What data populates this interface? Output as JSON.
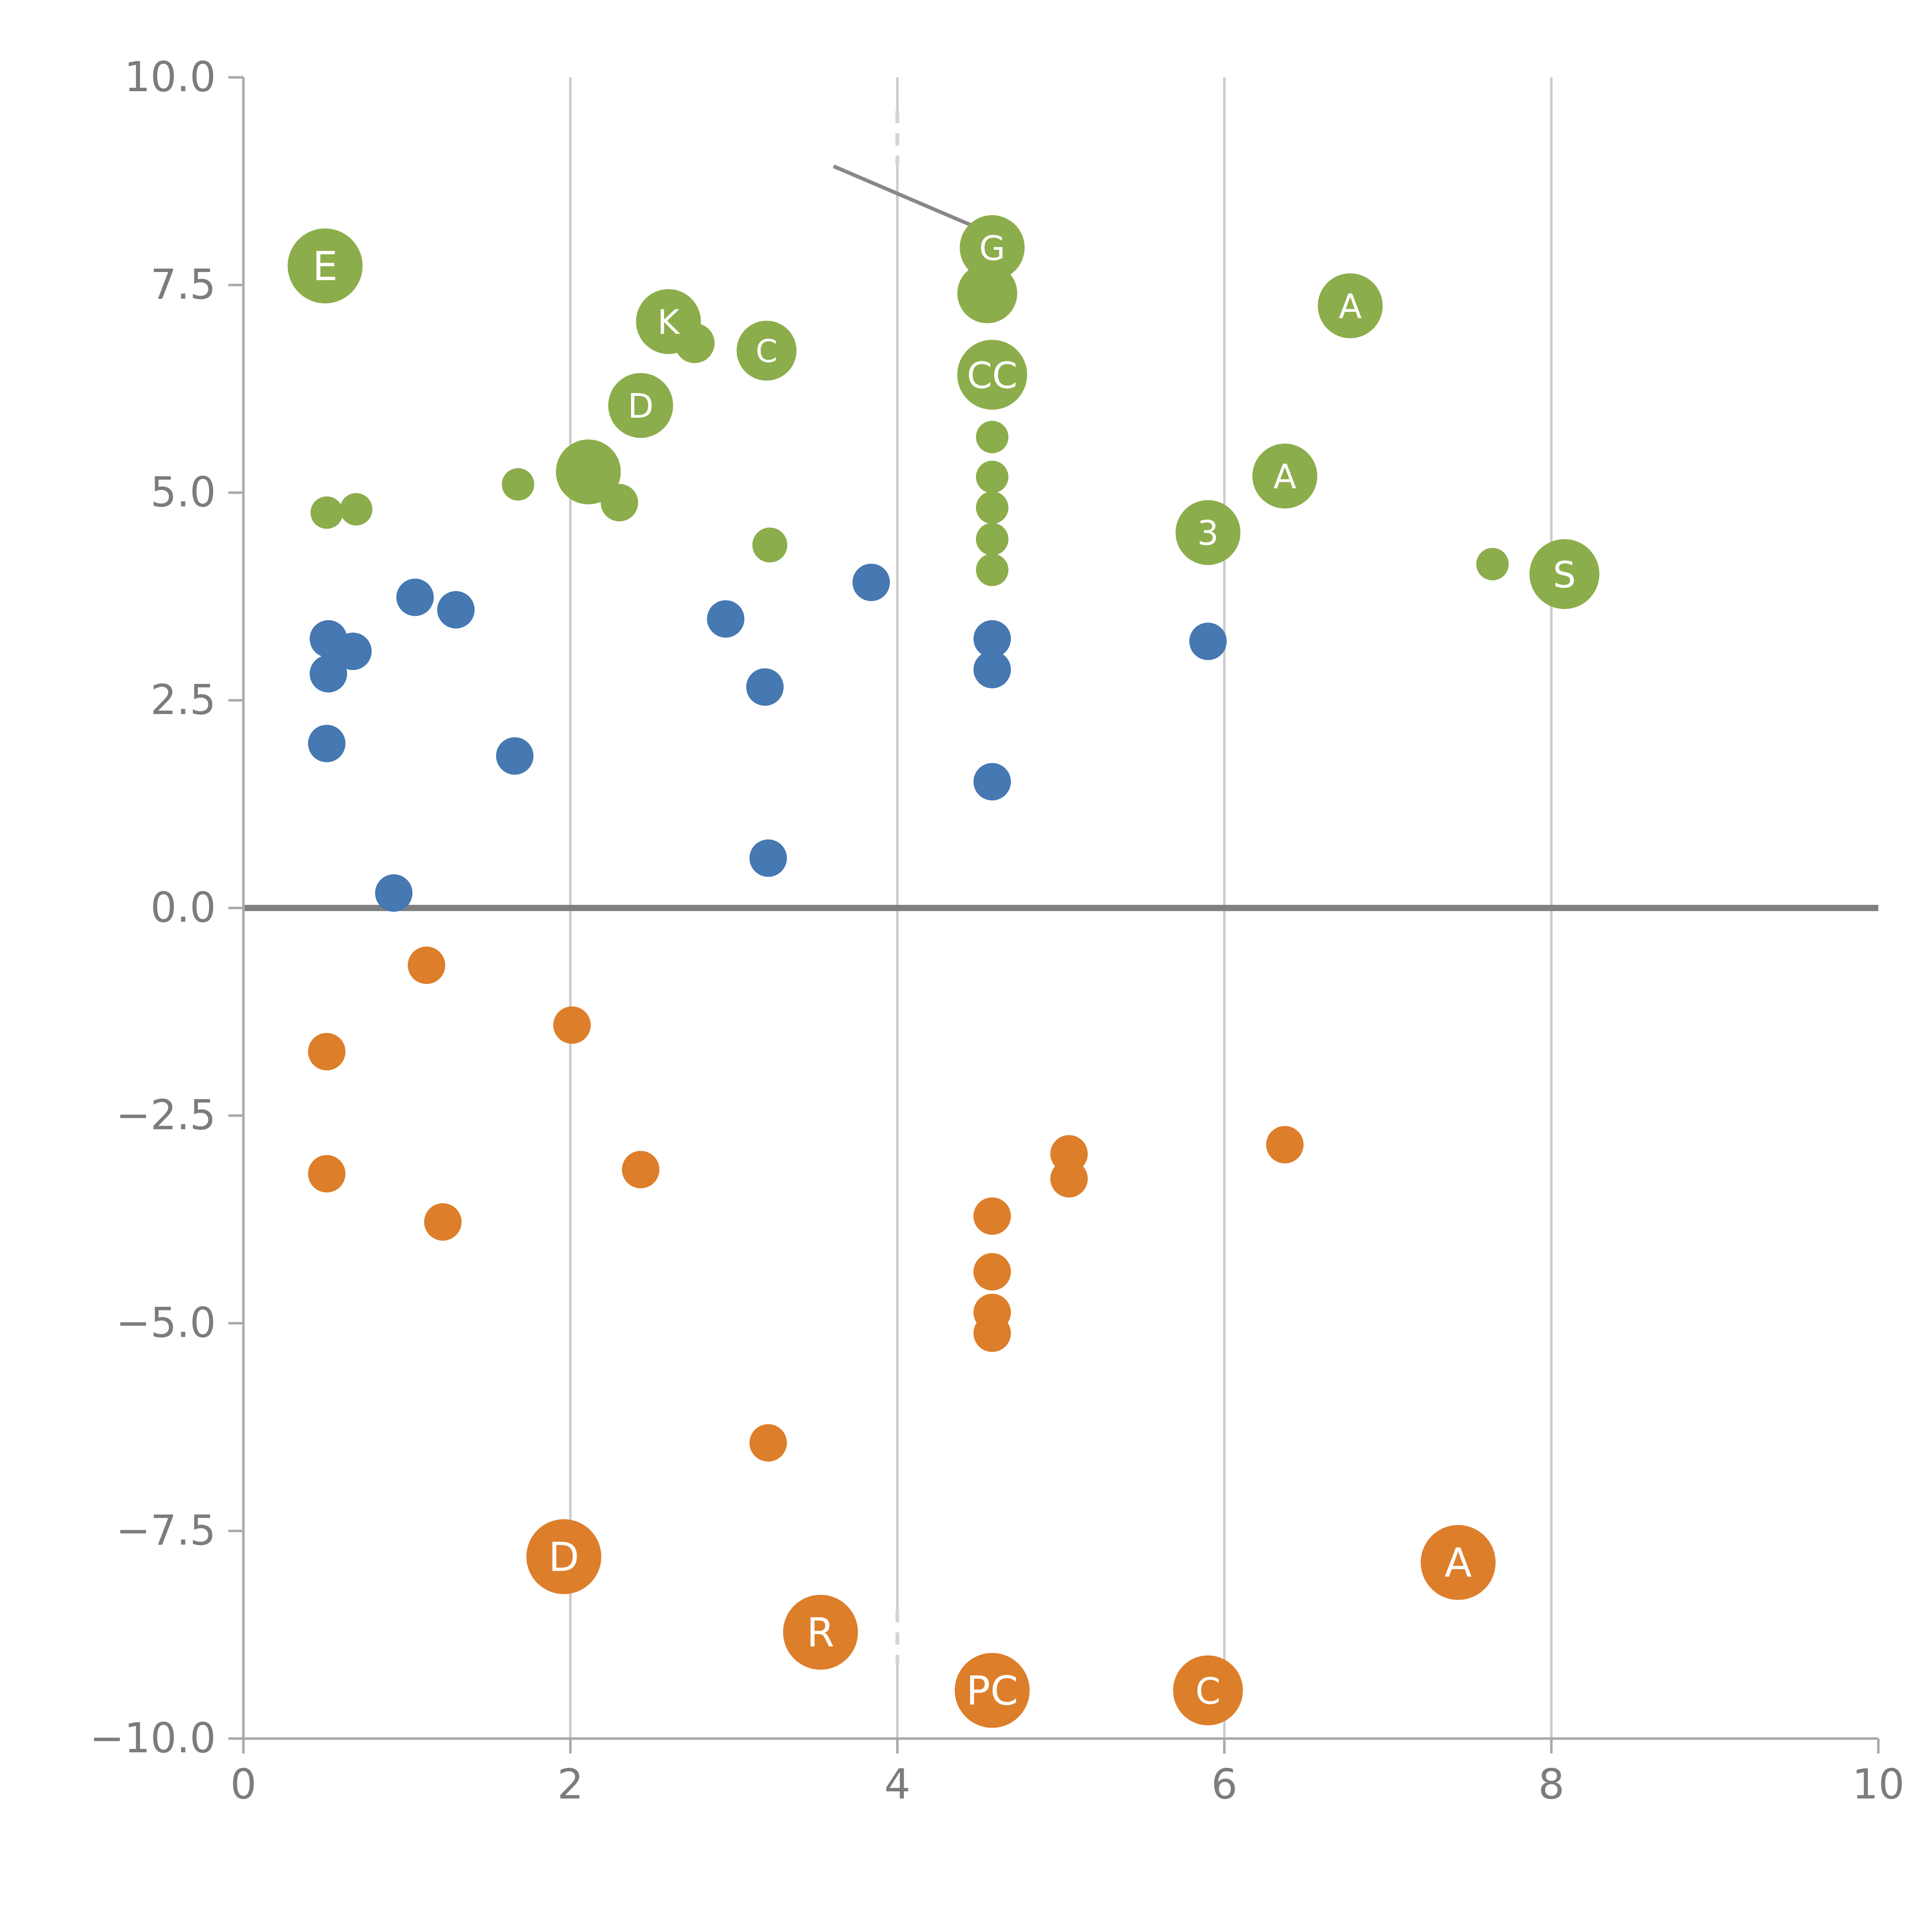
{
  "chart_data": {
    "type": "scatter",
    "title": "",
    "xlabel": "",
    "ylabel": "",
    "xlim": [
      0,
      10
    ],
    "ylim": [
      -10,
      10
    ],
    "x_ticks": [
      0,
      2,
      4,
      6,
      8,
      10
    ],
    "x_tick_labels": [
      "0",
      "2",
      "4",
      "6",
      "8",
      "10"
    ],
    "y_ticks": [
      10.0,
      7.5,
      5.0,
      2.5,
      0.0,
      -2.5,
      -5.0,
      -7.5,
      -10.0
    ],
    "y_tick_labels": [
      "10.0",
      "7.5",
      "5.0",
      "2.5",
      "0.0",
      "−2.5",
      "−5.0",
      "−7.5",
      "−10.0"
    ],
    "grid_x": [
      2,
      4,
      6,
      8
    ],
    "grid_on": true,
    "legend": "none",
    "zero_line_y": 0,
    "colors": {
      "green": "#8CAD4B",
      "blue": "#4678B2",
      "orange": "#DD7E2B",
      "grid": "#cccccc",
      "spine": "#aaaaaa",
      "tick_label": "#7c7c7c",
      "zero_line": "#808080",
      "annotation": "#888888",
      "point_label": "#ffffff"
    },
    "annotation_line": {
      "x1": 3.61,
      "y1": 8.93,
      "x2": 4.5,
      "y2": 8.18
    },
    "dashed_segments": [
      {
        "x": 4,
        "y1": 9.6,
        "y2": 8.95
      },
      {
        "x": 4,
        "y1": -8.45,
        "y2": -9.1
      }
    ],
    "series": [
      {
        "name": "green",
        "color": "#8CAD4B",
        "points": [
          {
            "x": 0.5,
            "y": 7.73,
            "r": 30,
            "label": "E"
          },
          {
            "x": 0.51,
            "y": 4.76,
            "r": 13
          },
          {
            "x": 0.69,
            "y": 4.8,
            "r": 13
          },
          {
            "x": 1.68,
            "y": 5.1,
            "r": 13
          },
          {
            "x": 2.11,
            "y": 5.25,
            "r": 26
          },
          {
            "x": 2.3,
            "y": 4.88,
            "r": 15
          },
          {
            "x": 2.43,
            "y": 6.05,
            "r": 26,
            "label": "D"
          },
          {
            "x": 2.6,
            "y": 7.06,
            "r": 26,
            "label": "K"
          },
          {
            "x": 2.76,
            "y": 6.8,
            "r": 16
          },
          {
            "x": 3.2,
            "y": 6.71,
            "r": 24,
            "label": "C"
          },
          {
            "x": 3.22,
            "y": 4.37,
            "r": 14
          },
          {
            "x": 4.58,
            "y": 7.95,
            "r": 26,
            "label": "G"
          },
          {
            "x": 4.55,
            "y": 7.4,
            "r": 24
          },
          {
            "x": 4.58,
            "y": 6.42,
            "r": 28,
            "label": "CC"
          },
          {
            "x": 4.58,
            "y": 5.67,
            "r": 13
          },
          {
            "x": 4.58,
            "y": 5.19,
            "r": 13
          },
          {
            "x": 4.58,
            "y": 4.82,
            "r": 13
          },
          {
            "x": 4.58,
            "y": 4.44,
            "r": 13
          },
          {
            "x": 4.58,
            "y": 4.07,
            "r": 13
          },
          {
            "x": 5.9,
            "y": 4.52,
            "r": 26,
            "label": "3"
          },
          {
            "x": 6.37,
            "y": 5.2,
            "r": 26,
            "label": "A"
          },
          {
            "x": 6.77,
            "y": 7.25,
            "r": 26,
            "label": "A"
          },
          {
            "x": 7.64,
            "y": 4.14,
            "r": 13
          },
          {
            "x": 8.08,
            "y": 4.02,
            "r": 28,
            "label": "S"
          }
        ]
      },
      {
        "name": "blue",
        "color": "#4678B2",
        "points": [
          {
            "x": 0.52,
            "y": 3.24,
            "r": 15
          },
          {
            "x": 0.52,
            "y": 2.82,
            "r": 15
          },
          {
            "x": 0.67,
            "y": 3.09,
            "r": 15
          },
          {
            "x": 0.51,
            "y": 1.98,
            "r": 15
          },
          {
            "x": 1.05,
            "y": 3.74,
            "r": 15
          },
          {
            "x": 1.3,
            "y": 3.59,
            "r": 15
          },
          {
            "x": 1.66,
            "y": 1.83,
            "r": 15
          },
          {
            "x": 0.92,
            "y": 0.18,
            "r": 15
          },
          {
            "x": 2.95,
            "y": 3.48,
            "r": 15
          },
          {
            "x": 3.19,
            "y": 2.66,
            "r": 15
          },
          {
            "x": 3.21,
            "y": 0.6,
            "r": 15
          },
          {
            "x": 3.84,
            "y": 3.92,
            "r": 15
          },
          {
            "x": 4.58,
            "y": 3.24,
            "r": 15
          },
          {
            "x": 4.58,
            "y": 2.87,
            "r": 15
          },
          {
            "x": 4.58,
            "y": 1.52,
            "r": 15
          },
          {
            "x": 5.9,
            "y": 3.21,
            "r": 15
          }
        ]
      },
      {
        "name": "orange",
        "color": "#DD7E2B",
        "points": [
          {
            "x": 0.51,
            "y": -1.73,
            "r": 15
          },
          {
            "x": 0.51,
            "y": -3.2,
            "r": 15
          },
          {
            "x": 1.12,
            "y": -0.69,
            "r": 15
          },
          {
            "x": 1.22,
            "y": -3.78,
            "r": 15
          },
          {
            "x": 2.01,
            "y": -1.41,
            "r": 15
          },
          {
            "x": 2.43,
            "y": -3.15,
            "r": 15
          },
          {
            "x": 3.21,
            "y": -6.44,
            "r": 15
          },
          {
            "x": 1.96,
            "y": -7.81,
            "r": 30,
            "label": "D"
          },
          {
            "x": 3.53,
            "y": -8.72,
            "r": 30,
            "label": "R"
          },
          {
            "x": 4.58,
            "y": -9.42,
            "r": 30,
            "label": "PC"
          },
          {
            "x": 5.05,
            "y": -2.96,
            "r": 15
          },
          {
            "x": 5.05,
            "y": -3.26,
            "r": 15
          },
          {
            "x": 4.58,
            "y": -3.71,
            "r": 15
          },
          {
            "x": 4.58,
            "y": -4.38,
            "r": 15
          },
          {
            "x": 4.58,
            "y": -4.87,
            "r": 15
          },
          {
            "x": 4.58,
            "y": -5.12,
            "r": 15
          },
          {
            "x": 5.9,
            "y": -9.42,
            "r": 28,
            "label": "C"
          },
          {
            "x": 6.37,
            "y": -2.85,
            "r": 15
          },
          {
            "x": 7.43,
            "y": -7.88,
            "r": 30,
            "label": "A"
          }
        ]
      }
    ]
  }
}
